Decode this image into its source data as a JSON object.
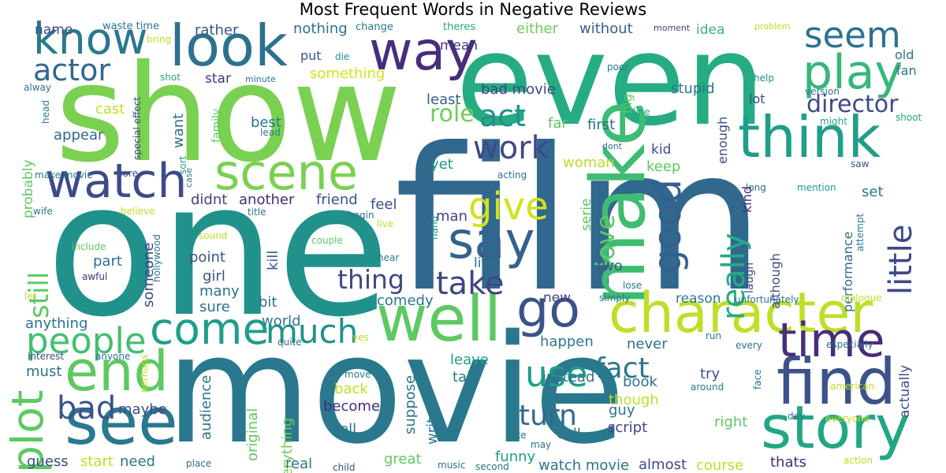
{
  "title": "Most Frequent Words in Negative Reviews",
  "colormap": "viridis",
  "words": [
    {
      "text": "film",
      "color": "#31688e"
    },
    {
      "text": "movie",
      "color": "#2a788e"
    },
    {
      "text": "one",
      "color": "#21918c"
    },
    {
      "text": "even",
      "color": "#25ac82"
    },
    {
      "text": "show",
      "color": "#7ad151"
    },
    {
      "text": "character",
      "color": "#bddf26"
    },
    {
      "text": "look",
      "color": "#2c728e"
    },
    {
      "text": "way",
      "color": "#472d7b"
    },
    {
      "text": "story",
      "color": "#22a785"
    },
    {
      "text": "well",
      "color": "#5ec962"
    },
    {
      "text": "make",
      "color": "#3fbc73"
    },
    {
      "text": "see",
      "color": "#2a788e"
    },
    {
      "text": "think",
      "color": "#1f9e89"
    },
    {
      "text": "find",
      "color": "#3b528b"
    },
    {
      "text": "time",
      "color": "#472d7b"
    },
    {
      "text": "watch",
      "color": "#3e4989"
    },
    {
      "text": "scene",
      "color": "#7ad151"
    },
    {
      "text": "end",
      "color": "#5ec962"
    },
    {
      "text": "say",
      "color": "#33638d"
    },
    {
      "text": "go",
      "color": "#3b528b"
    },
    {
      "text": "come",
      "color": "#1f9e89"
    },
    {
      "text": "know",
      "color": "#2a788e"
    },
    {
      "text": "play",
      "color": "#35b779"
    },
    {
      "text": "plot",
      "color": "#5ec962"
    },
    {
      "text": "people",
      "color": "#44bf70"
    },
    {
      "text": "seem",
      "color": "#2c728e"
    },
    {
      "text": "good",
      "color": "#355f8d"
    },
    {
      "text": "give",
      "color": "#d2e21b"
    },
    {
      "text": "much",
      "color": "#21918c"
    },
    {
      "text": "work",
      "color": "#3e4989"
    },
    {
      "text": "bad",
      "color": "#3b528b"
    },
    {
      "text": "take",
      "color": "#414487"
    },
    {
      "text": "use",
      "color": "#1f9e89"
    },
    {
      "text": "actor",
      "color": "#31688e"
    },
    {
      "text": "really",
      "color": "#25ac82"
    },
    {
      "text": "little",
      "color": "#3e4989"
    },
    {
      "text": "act",
      "color": "#21918c"
    },
    {
      "text": "thing",
      "color": "#3e4989"
    },
    {
      "text": "director",
      "color": "#3e4989"
    },
    {
      "text": "fact",
      "color": "#2a788e"
    },
    {
      "text": "turn",
      "color": "#31688e"
    },
    {
      "text": "still",
      "color": "#5ec962"
    },
    {
      "text": "love",
      "color": "#5ec962"
    },
    {
      "text": "nothing",
      "color": "#2c728e"
    },
    {
      "text": "either",
      "color": "#6ece58"
    },
    {
      "text": "without",
      "color": "#355f8d"
    },
    {
      "text": "rather",
      "color": "#3b528b"
    },
    {
      "text": "name",
      "color": "#3e4989"
    },
    {
      "text": "waste time",
      "color": "#2c728e"
    },
    {
      "text": "mean",
      "color": "#46337e"
    },
    {
      "text": "change",
      "color": "#2a788e"
    },
    {
      "text": "theres",
      "color": "#22a785"
    },
    {
      "text": "moment",
      "color": "#433e85"
    },
    {
      "text": "problem",
      "color": "#bddf26"
    },
    {
      "text": "idea",
      "color": "#35b779"
    },
    {
      "text": "old",
      "color": "#2c728e"
    },
    {
      "text": "fan",
      "color": "#2c728e"
    },
    {
      "text": "put",
      "color": "#3b528b"
    },
    {
      "text": "something",
      "color": "#d2e21b"
    },
    {
      "text": "bring",
      "color": "#bddf26"
    },
    {
      "text": "die",
      "color": "#21918c"
    },
    {
      "text": "poor",
      "color": "#2a788e"
    },
    {
      "text": "help",
      "color": "#21918c"
    },
    {
      "text": "version",
      "color": "#2a788e"
    },
    {
      "text": "star",
      "color": "#46337e"
    },
    {
      "text": "shot",
      "color": "#22a785"
    },
    {
      "text": "minute",
      "color": "#2c728e"
    },
    {
      "text": "bad movie",
      "color": "#414487"
    },
    {
      "text": "stupid",
      "color": "#2a788e"
    },
    {
      "text": "alway",
      "color": "#2c728e"
    },
    {
      "text": "head",
      "color": "#2a788e"
    },
    {
      "text": "special effect",
      "color": "#3e4989"
    },
    {
      "text": "cast",
      "color": "#bddf26"
    },
    {
      "text": "want",
      "color": "#2c728e"
    },
    {
      "text": "least",
      "color": "#355f8d"
    },
    {
      "text": "big",
      "color": "#5ec962"
    },
    {
      "text": "lot",
      "color": "#3e4989"
    },
    {
      "text": "line",
      "color": "#22a785"
    },
    {
      "text": "might",
      "color": "#22a785"
    },
    {
      "text": "shoot",
      "color": "#22a785"
    },
    {
      "text": "role",
      "color": "#6ece58"
    },
    {
      "text": "first",
      "color": "#2c728e"
    },
    {
      "text": "best",
      "color": "#2a788e"
    },
    {
      "text": "far",
      "color": "#5ec962"
    },
    {
      "text": "appear",
      "color": "#31688e"
    },
    {
      "text": "family",
      "color": "#5ec962"
    },
    {
      "text": "lead",
      "color": "#2a788e"
    },
    {
      "text": "kid",
      "color": "#3e4989"
    },
    {
      "text": "dont",
      "color": "#2c728e"
    },
    {
      "text": "enough",
      "color": "#3e4989"
    },
    {
      "text": "make movie",
      "color": "#2a788e"
    },
    {
      "text": "bore",
      "color": "#3b528b"
    },
    {
      "text": "sort",
      "color": "#1f9e89"
    },
    {
      "text": "case",
      "color": "#2c728e"
    },
    {
      "text": "woman",
      "color": "#bddf26"
    },
    {
      "text": "yet",
      "color": "#21918c"
    },
    {
      "text": "acting",
      "color": "#2c728e"
    },
    {
      "text": "keep",
      "color": "#5ec962"
    },
    {
      "text": "long",
      "color": "#31688e"
    },
    {
      "text": "mention",
      "color": "#1f9e89"
    },
    {
      "text": "saw",
      "color": "#3b528b"
    },
    {
      "text": "probably",
      "color": "#5ec962"
    },
    {
      "text": "didnt",
      "color": "#414487"
    },
    {
      "text": "another",
      "color": "#472d7b"
    },
    {
      "text": "set",
      "color": "#2a788e"
    },
    {
      "text": "wife",
      "color": "#2a788e"
    },
    {
      "text": "believe",
      "color": "#bddf26"
    },
    {
      "text": "title",
      "color": "#2c728e"
    },
    {
      "text": "begin",
      "color": "#2a788e"
    },
    {
      "text": "friend",
      "color": "#3b528b"
    },
    {
      "text": "feel",
      "color": "#3b528b"
    },
    {
      "text": "man",
      "color": "#414487"
    },
    {
      "text": "serie",
      "color": "#5ec962"
    },
    {
      "text": "kind",
      "color": "#472d7b"
    },
    {
      "text": "attempt",
      "color": "#2a788e"
    },
    {
      "text": "live",
      "color": "#bddf26"
    },
    {
      "text": "sound",
      "color": "#bddf26"
    },
    {
      "text": "include",
      "color": "#5ec962"
    },
    {
      "text": "hollywood",
      "color": "#2c728e"
    },
    {
      "text": "someone",
      "color": "#3e4989"
    },
    {
      "text": "kill",
      "color": "#3b528b"
    },
    {
      "text": "couple",
      "color": "#5ec962"
    },
    {
      "text": "hand",
      "color": "#21918c"
    },
    {
      "text": "laugh",
      "color": "#3e4989"
    },
    {
      "text": "although",
      "color": "#3e4989"
    },
    {
      "text": "performance",
      "color": "#31688e"
    },
    {
      "text": "part",
      "color": "#2c728e"
    },
    {
      "text": "point",
      "color": "#3b528b"
    },
    {
      "text": "hear",
      "color": "#2a788e"
    },
    {
      "text": "life",
      "color": "#2c728e"
    },
    {
      "text": "two",
      "color": "#3b528b"
    },
    {
      "text": "awful",
      "color": "#472d7b"
    },
    {
      "text": "girl",
      "color": "#3b528b"
    },
    {
      "text": "lose",
      "color": "#2c728e"
    },
    {
      "text": "let",
      "color": "#bddf26"
    },
    {
      "text": "many",
      "color": "#2c728e"
    },
    {
      "text": "sure",
      "color": "#2c728e"
    },
    {
      "text": "new",
      "color": "#414487"
    },
    {
      "text": "simply",
      "color": "#2c728e"
    },
    {
      "text": "reason",
      "color": "#2a788e"
    },
    {
      "text": "unfortunately",
      "color": "#2c728e"
    },
    {
      "text": "dialogue",
      "color": "#bddf26"
    },
    {
      "text": "bit",
      "color": "#2c728e"
    },
    {
      "text": "comedy",
      "color": "#2a788e"
    },
    {
      "text": "world",
      "color": "#2a788e"
    },
    {
      "text": "anything",
      "color": "#2c728e"
    },
    {
      "text": "quite",
      "color": "#2c728e"
    },
    {
      "text": "yes",
      "color": "#bddf26"
    },
    {
      "text": "happen",
      "color": "#2a788e"
    },
    {
      "text": "run",
      "color": "#2a788e"
    },
    {
      "text": "never",
      "color": "#2c728e"
    },
    {
      "text": "every",
      "color": "#2c728e"
    },
    {
      "text": "especially",
      "color": "#2c728e"
    },
    {
      "text": "interest",
      "color": "#3e4989"
    },
    {
      "text": "anyone",
      "color": "#2a788e"
    },
    {
      "text": "perhaps",
      "color": "#bddf26"
    },
    {
      "text": "must",
      "color": "#2c728e"
    },
    {
      "text": "leave",
      "color": "#1f9e89"
    },
    {
      "text": "talk",
      "color": "#2a788e"
    },
    {
      "text": "move",
      "color": "#2a788e"
    },
    {
      "text": "instead",
      "color": "#2c728e"
    },
    {
      "text": "book",
      "color": "#2c728e"
    },
    {
      "text": "try",
      "color": "#3b528b"
    },
    {
      "text": "around",
      "color": "#2a788e"
    },
    {
      "text": "face",
      "color": "#2c728e"
    },
    {
      "text": "american",
      "color": "#bddf26"
    },
    {
      "text": "back",
      "color": "#bddf26"
    },
    {
      "text": "though",
      "color": "#bddf26"
    },
    {
      "text": "suppose",
      "color": "#2c728e"
    },
    {
      "text": "become",
      "color": "#472d7b"
    },
    {
      "text": "maybe",
      "color": "#3e4989"
    },
    {
      "text": "audience",
      "color": "#2c728e"
    },
    {
      "text": "guy",
      "color": "#2c728e"
    },
    {
      "text": "day",
      "color": "#2c728e"
    },
    {
      "text": "everyone",
      "color": "#bddf26"
    },
    {
      "text": "right",
      "color": "#5ec962"
    },
    {
      "text": "joke",
      "color": "#2c728e"
    },
    {
      "text": "call",
      "color": "#2a788e"
    },
    {
      "text": "script",
      "color": "#414487"
    },
    {
      "text": "tell",
      "color": "#2c728e"
    },
    {
      "text": "write",
      "color": "#2a788e"
    },
    {
      "text": "may",
      "color": "#2c728e"
    },
    {
      "text": "actually",
      "color": "#3e4989"
    },
    {
      "text": "everything",
      "color": "#6ece58"
    },
    {
      "text": "original",
      "color": "#5ec962"
    },
    {
      "text": "great",
      "color": "#5ec962"
    },
    {
      "text": "funny",
      "color": "#1f9e89"
    },
    {
      "text": "guess",
      "color": "#3e4989"
    },
    {
      "text": "start",
      "color": "#bddf26"
    },
    {
      "text": "need",
      "color": "#2a788e"
    },
    {
      "text": "real",
      "color": "#2c728e"
    },
    {
      "text": "watch movie",
      "color": "#2c728e"
    },
    {
      "text": "almost",
      "color": "#3e4989"
    },
    {
      "text": "course",
      "color": "#bddf26"
    },
    {
      "text": "thats",
      "color": "#472d7b"
    },
    {
      "text": "action",
      "color": "#bddf26"
    },
    {
      "text": "place",
      "color": "#2c728e"
    },
    {
      "text": "child",
      "color": "#3e4989"
    },
    {
      "text": "music",
      "color": "#2c728e"
    },
    {
      "text": "second",
      "color": "#2c728e"
    }
  ]
}
